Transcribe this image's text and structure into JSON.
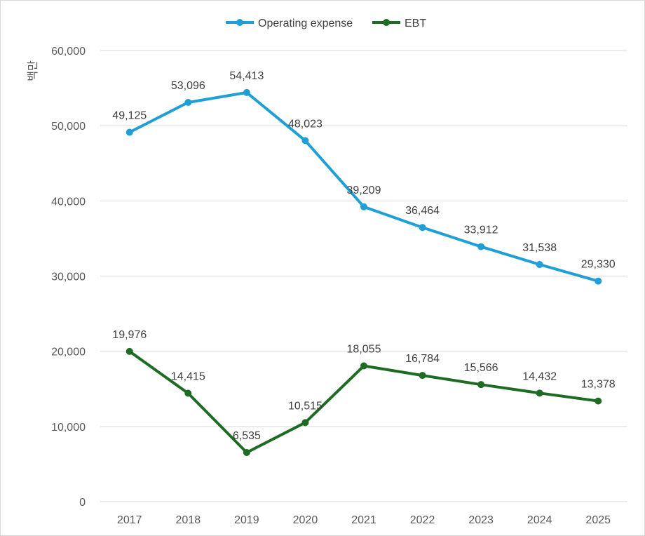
{
  "chart_data": {
    "type": "line",
    "title": "",
    "xlabel": "",
    "ylabel": "",
    "y_unit_label": "백만",
    "x": [
      "2017",
      "2018",
      "2019",
      "2020",
      "2021",
      "2022",
      "2023",
      "2024",
      "2025"
    ],
    "ylim": [
      0,
      60000
    ],
    "yticks": [
      0,
      10000,
      20000,
      30000,
      40000,
      50000,
      60000
    ],
    "ytick_labels": [
      "0",
      "10,000",
      "20,000",
      "30,000",
      "40,000",
      "50,000",
      "60,000"
    ],
    "grid": true,
    "legend_position": "top",
    "series": [
      {
        "name": "Operating expense",
        "color": "#1f9fd5",
        "values": [
          49125,
          53096,
          54413,
          48023,
          39209,
          36464,
          33912,
          31538,
          29330
        ],
        "labels": [
          "49,125",
          "53,096",
          "54,413",
          "48,023",
          "39,209",
          "36,464",
          "33,912",
          "31,538",
          "29,330"
        ]
      },
      {
        "name": "EBT",
        "color": "#1e6b23",
        "values": [
          19976,
          14415,
          6535,
          10515,
          18055,
          16784,
          15566,
          14432,
          13378
        ],
        "labels": [
          "19,976",
          "14,415",
          "6,535",
          "10,515",
          "18,055",
          "16,784",
          "15,566",
          "14,432",
          "13,378"
        ]
      }
    ]
  }
}
